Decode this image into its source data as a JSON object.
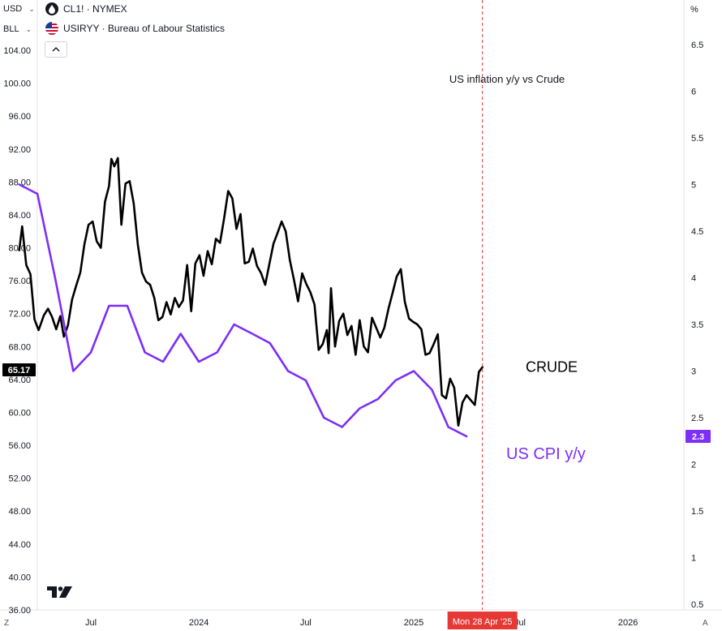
{
  "toolbar": {
    "currency": "USD",
    "unit": "BLL",
    "percent": "%",
    "corner_left": "Z",
    "corner_right": "A"
  },
  "series_heads": [
    {
      "label": "CL1! · NYMEX",
      "icon": "oil-drop-icon"
    },
    {
      "label": "USIRYY · Bureau of Labour Statistics",
      "icon": "us-flag-icon"
    }
  ],
  "chart_data": {
    "type": "line",
    "title": "US inflation y/y vs Crude",
    "x_ticks": [
      "Jul",
      "2024",
      "Jul",
      "2025",
      "Jul",
      "2026"
    ],
    "left_axis": {
      "ticks": [
        "104.00",
        "100.00",
        "96.00",
        "92.00",
        "88.00",
        "84.00",
        "80.00",
        "76.00",
        "72.00",
        "68.00",
        "64.00",
        "60.00",
        "56.00",
        "52.00",
        "48.00",
        "44.00",
        "40.00",
        "36.00"
      ],
      "range": [
        36,
        104
      ]
    },
    "right_axis": {
      "ticks": [
        "6.5",
        "6",
        "5.5",
        "5",
        "4.5",
        "4",
        "3.5",
        "3",
        "2.5",
        "2",
        "1.5",
        "1",
        "0.5"
      ],
      "range": [
        0.5,
        6.5
      ]
    },
    "crosshair_label": "Mon 28 Apr '25",
    "last_values": {
      "crude": "65.17",
      "cpi": "2.3"
    },
    "series": [
      {
        "name": "CRUDE",
        "color": "#000000",
        "axis": "left",
        "points": [
          [
            "2023-03-01",
            79.7
          ],
          [
            "2023-03-06",
            82.6
          ],
          [
            "2023-03-13",
            77.9
          ],
          [
            "2023-03-20",
            76.8
          ],
          [
            "2023-03-27",
            71.3
          ],
          [
            "2023-04-03",
            70.0
          ],
          [
            "2023-04-12",
            71.8
          ],
          [
            "2023-04-19",
            72.6
          ],
          [
            "2023-04-26",
            71.6
          ],
          [
            "2023-05-03",
            70.1
          ],
          [
            "2023-05-10",
            71.7
          ],
          [
            "2023-05-16",
            69.2
          ],
          [
            "2023-05-23",
            70.6
          ],
          [
            "2023-05-30",
            73.7
          ],
          [
            "2023-06-06",
            75.4
          ],
          [
            "2023-06-13",
            77.0
          ],
          [
            "2023-06-20",
            80.4
          ],
          [
            "2023-06-27",
            82.8
          ],
          [
            "2023-07-04",
            83.2
          ],
          [
            "2023-07-11",
            80.8
          ],
          [
            "2023-07-18",
            80.0
          ],
          [
            "2023-07-25",
            85.6
          ],
          [
            "2023-08-01",
            87.5
          ],
          [
            "2023-08-05",
            90.8
          ],
          [
            "2023-08-10",
            89.9
          ],
          [
            "2023-08-16",
            90.9
          ],
          [
            "2023-08-22",
            82.8
          ],
          [
            "2023-08-29",
            87.8
          ],
          [
            "2023-09-05",
            88.1
          ],
          [
            "2023-09-12",
            85.4
          ],
          [
            "2023-09-19",
            80.4
          ],
          [
            "2023-09-26",
            77.0
          ],
          [
            "2023-10-03",
            75.9
          ],
          [
            "2023-10-10",
            75.5
          ],
          [
            "2023-10-17",
            73.9
          ],
          [
            "2023-10-24",
            71.2
          ],
          [
            "2023-10-31",
            71.6
          ],
          [
            "2023-11-07",
            73.4
          ],
          [
            "2023-11-14",
            71.9
          ],
          [
            "2023-11-21",
            73.9
          ],
          [
            "2023-11-28",
            72.8
          ],
          [
            "2023-12-05",
            73.6
          ],
          [
            "2023-12-12",
            77.9
          ],
          [
            "2023-12-19",
            72.3
          ],
          [
            "2023-12-26",
            78.1
          ],
          [
            "2024-01-02",
            79.1
          ],
          [
            "2024-01-09",
            76.6
          ],
          [
            "2024-01-16",
            79.6
          ],
          [
            "2024-01-23",
            78.0
          ],
          [
            "2024-01-30",
            81.1
          ],
          [
            "2024-02-06",
            80.6
          ],
          [
            "2024-02-13",
            83.6
          ],
          [
            "2024-02-20",
            86.9
          ],
          [
            "2024-02-27",
            86.0
          ],
          [
            "2024-03-05",
            82.3
          ],
          [
            "2024-03-12",
            84.1
          ],
          [
            "2024-03-19",
            78.1
          ],
          [
            "2024-03-26",
            78.3
          ],
          [
            "2024-04-02",
            79.9
          ],
          [
            "2024-04-09",
            77.8
          ],
          [
            "2024-04-16",
            76.9
          ],
          [
            "2024-04-23",
            75.5
          ],
          [
            "2024-04-30",
            78.0
          ],
          [
            "2024-05-07",
            80.5
          ],
          [
            "2024-05-14",
            81.8
          ],
          [
            "2024-05-21",
            83.2
          ],
          [
            "2024-05-28",
            82.0
          ],
          [
            "2024-06-04",
            78.5
          ],
          [
            "2024-06-11",
            76.1
          ],
          [
            "2024-06-18",
            73.5
          ],
          [
            "2024-06-25",
            76.9
          ],
          [
            "2024-07-02",
            75.6
          ],
          [
            "2024-07-09",
            74.6
          ],
          [
            "2024-07-16",
            73.1
          ],
          [
            "2024-07-23",
            67.6
          ],
          [
            "2024-07-30",
            68.3
          ],
          [
            "2024-08-06",
            70.0
          ],
          [
            "2024-08-09",
            67.2
          ],
          [
            "2024-08-13",
            75.1
          ],
          [
            "2024-08-20",
            68.0
          ],
          [
            "2024-08-27",
            71.1
          ],
          [
            "2024-09-03",
            72.0
          ],
          [
            "2024-09-10",
            69.4
          ],
          [
            "2024-09-17",
            70.5
          ],
          [
            "2024-09-24",
            67.0
          ],
          [
            "2024-10-01",
            71.2
          ],
          [
            "2024-10-08",
            68.0
          ],
          [
            "2024-10-15",
            67.3
          ],
          [
            "2024-10-22",
            71.5
          ],
          [
            "2024-10-29",
            70.3
          ],
          [
            "2024-11-05",
            69.1
          ],
          [
            "2024-11-12",
            70.3
          ],
          [
            "2024-11-19",
            72.6
          ],
          [
            "2024-11-26",
            74.5
          ],
          [
            "2024-12-03",
            76.5
          ],
          [
            "2024-12-10",
            77.4
          ],
          [
            "2024-12-17",
            73.4
          ],
          [
            "2024-12-24",
            71.4
          ],
          [
            "2024-12-31",
            71.0
          ],
          [
            "2025-01-07",
            70.7
          ],
          [
            "2025-01-14",
            70.1
          ],
          [
            "2025-01-21",
            67.0
          ],
          [
            "2025-01-28",
            67.2
          ],
          [
            "2025-02-04",
            68.3
          ],
          [
            "2025-02-11",
            69.5
          ],
          [
            "2025-02-18",
            62.1
          ],
          [
            "2025-02-25",
            61.7
          ],
          [
            "2025-03-04",
            64.1
          ],
          [
            "2025-03-11",
            63.0
          ],
          [
            "2025-03-18",
            58.4
          ],
          [
            "2025-03-25",
            61.2
          ],
          [
            "2025-04-01",
            62.1
          ],
          [
            "2025-04-08",
            61.5
          ],
          [
            "2025-04-15",
            60.9
          ],
          [
            "2025-04-22",
            64.9
          ],
          [
            "2025-04-28",
            65.5
          ]
        ]
      },
      {
        "name": "US CPI y/y",
        "color": "#7d2ef7",
        "axis": "right",
        "points": [
          [
            "2023-03-01",
            5.0
          ],
          [
            "2023-04-01",
            4.9
          ],
          [
            "2023-05-01",
            4.0
          ],
          [
            "2023-06-01",
            3.0
          ],
          [
            "2023-07-01",
            3.2
          ],
          [
            "2023-08-01",
            3.7
          ],
          [
            "2023-09-01",
            3.7
          ],
          [
            "2023-10-01",
            3.2
          ],
          [
            "2023-11-01",
            3.1
          ],
          [
            "2023-12-01",
            3.4
          ],
          [
            "2024-01-01",
            3.1
          ],
          [
            "2024-02-01",
            3.2
          ],
          [
            "2024-03-01",
            3.5
          ],
          [
            "2024-04-01",
            3.4
          ],
          [
            "2024-05-01",
            3.3
          ],
          [
            "2024-06-01",
            3.0
          ],
          [
            "2024-07-01",
            2.9
          ],
          [
            "2024-08-01",
            2.5
          ],
          [
            "2024-09-01",
            2.4
          ],
          [
            "2024-10-01",
            2.6
          ],
          [
            "2024-11-01",
            2.7
          ],
          [
            "2024-12-01",
            2.9
          ],
          [
            "2025-01-01",
            3.0
          ],
          [
            "2025-02-01",
            2.8
          ],
          [
            "2025-03-01",
            2.4
          ],
          [
            "2025-04-01",
            2.3
          ]
        ]
      }
    ],
    "annotations": {
      "crude_label": "CRUDE",
      "cpi_label": "US CPI y/y"
    }
  }
}
